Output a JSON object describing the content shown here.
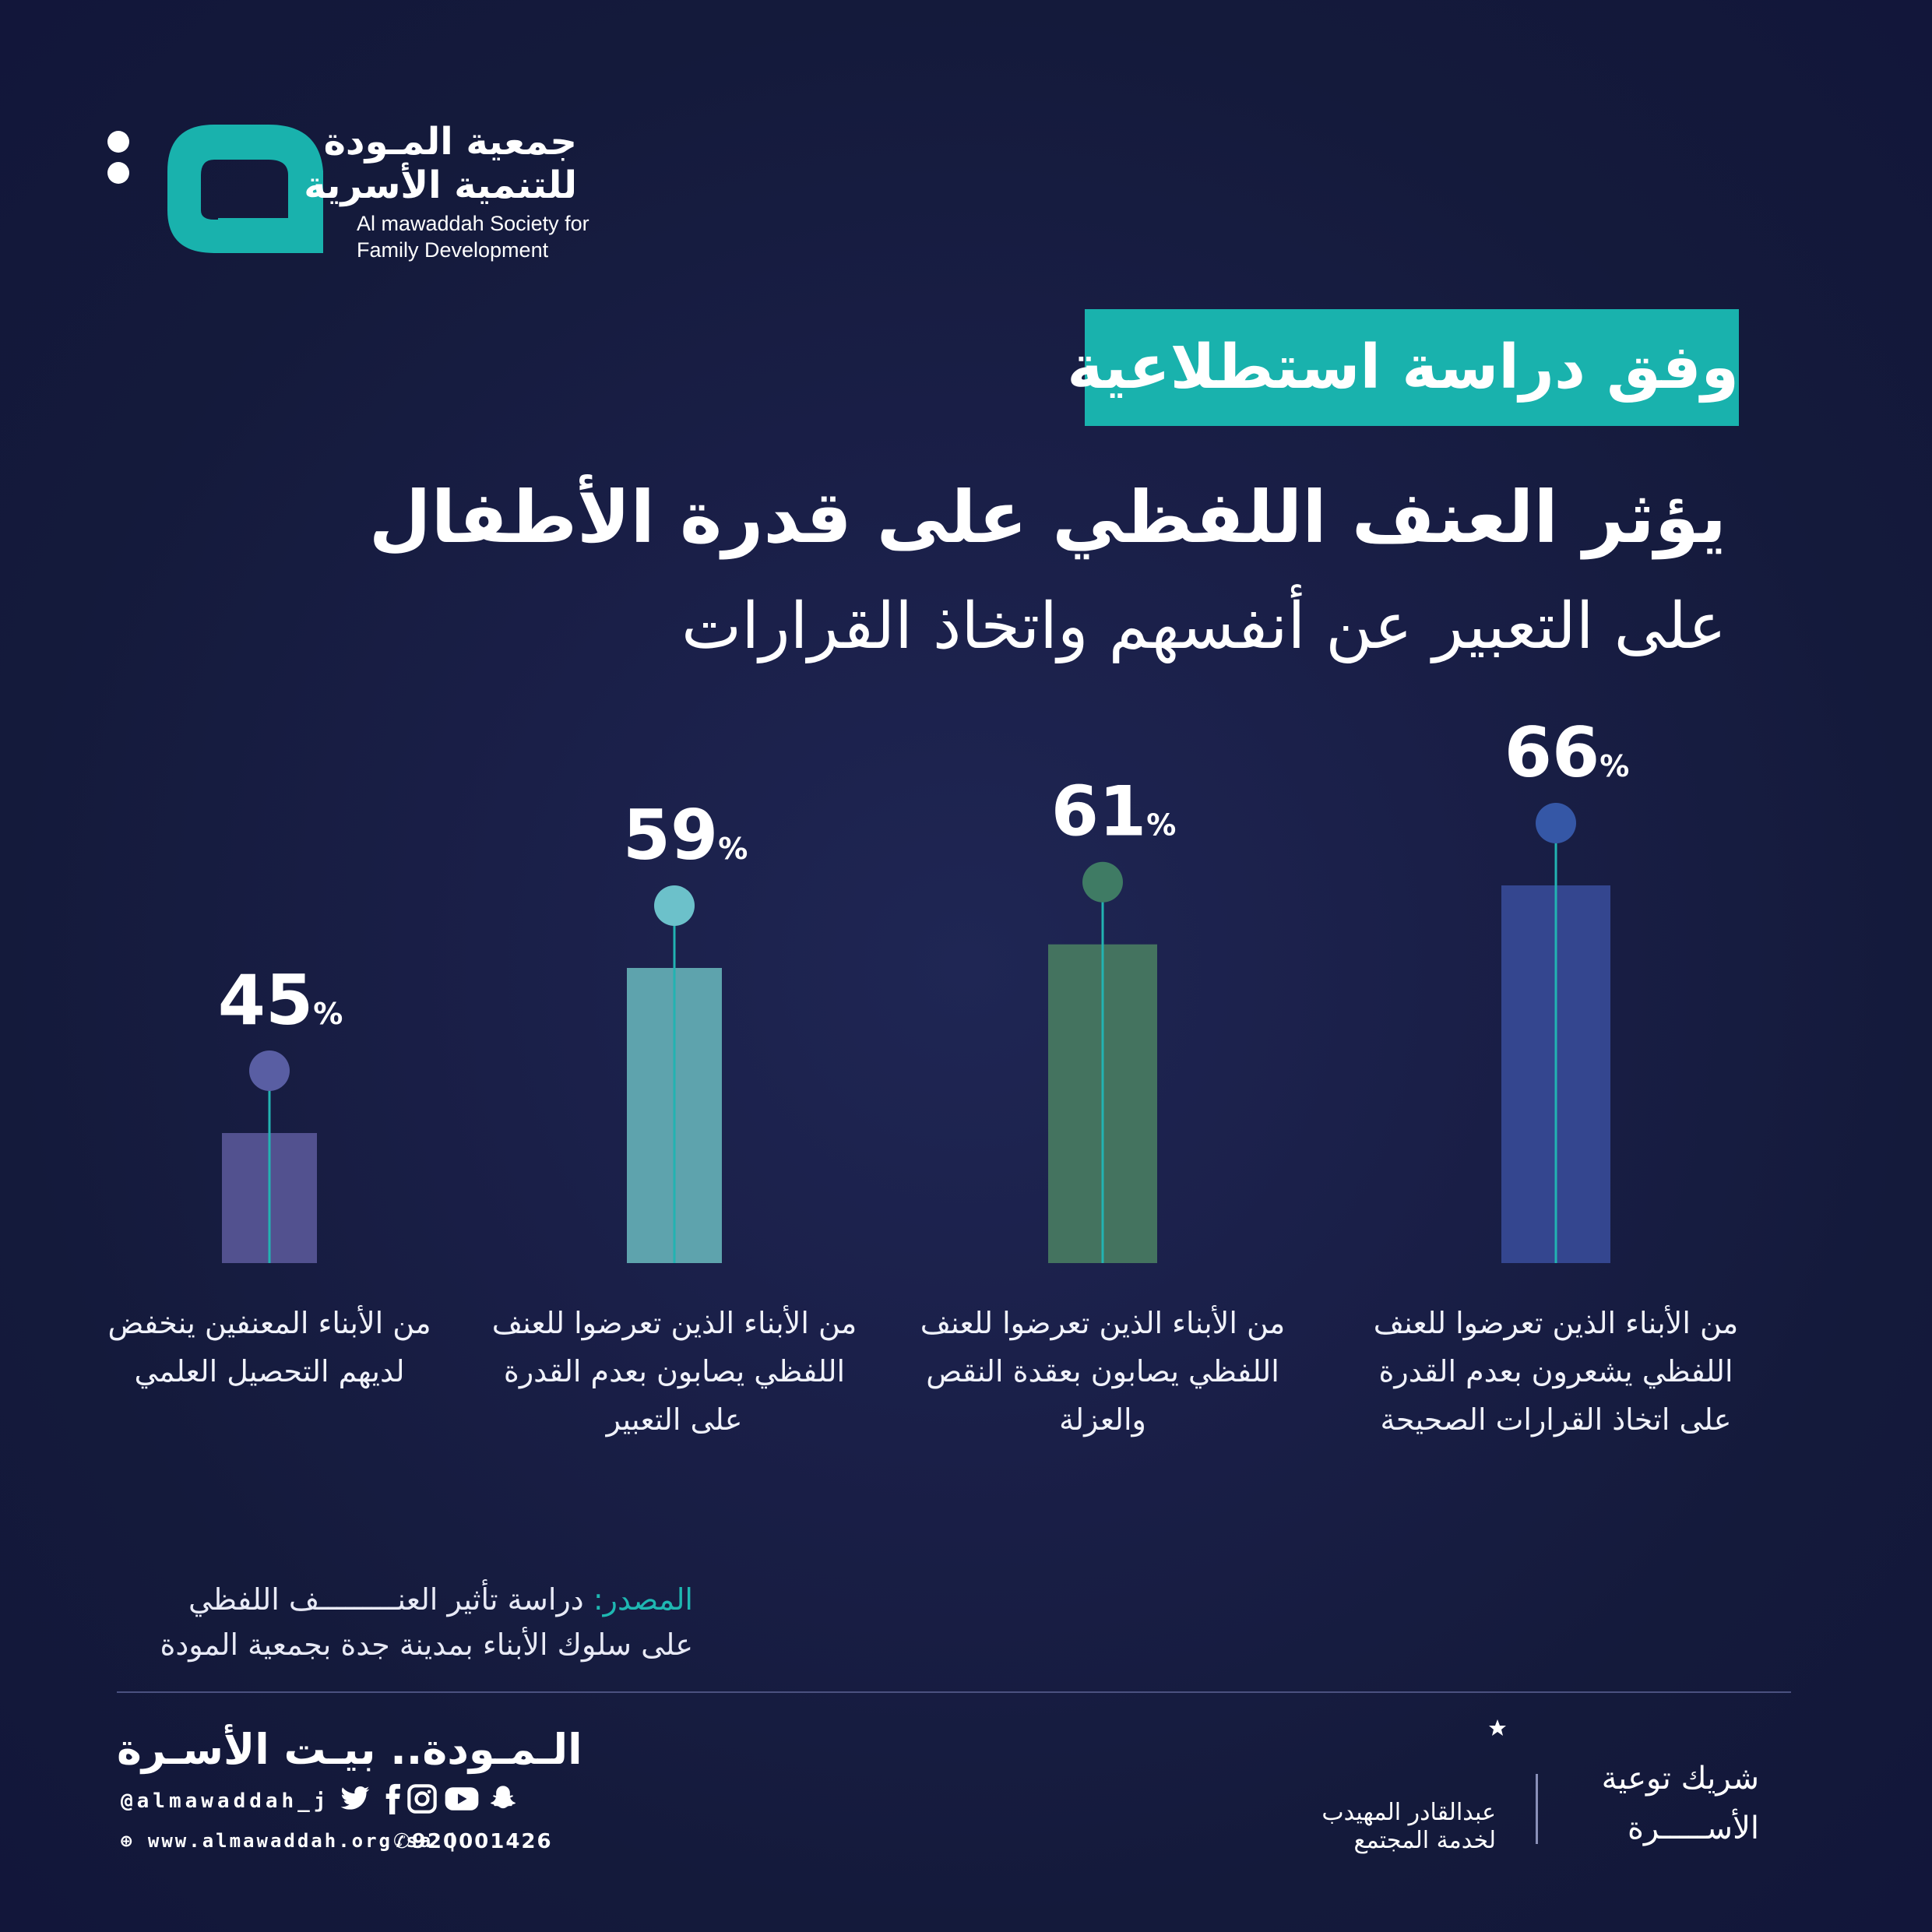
{
  "organization": {
    "name_ar_line1": "جمعية المـودة",
    "name_ar_line2": "للتنمية الأسرية",
    "name_en_line1": "Al mawaddah Society for",
    "name_en_line2": "Family Development"
  },
  "survey_tag": "وفق دراسة استطلاعية",
  "title": {
    "main": "يؤثر العنف اللفظي على قدرة الأطفال",
    "sub": "على التعبير عن أنفسهم واتخاذ القرارات"
  },
  "chart_data": {
    "type": "bar",
    "categories": [
      "من الأبناء الذين تعرضوا للعنف اللفظي يشعرون بعدم القدرة على اتخاذ القرارات الصحيحة",
      "من الأبناء الذين تعرضوا للعنف اللفظي يصابون بعقدة النقص والعزلة",
      "من الأبناء الذين تعرضوا للعنف اللفظي يصابون بعدم القدرة على التعبير",
      "من الأبناء المعنفين ينخفض لديهم التحصيل العلمي"
    ],
    "values": [
      66,
      61,
      59,
      45
    ],
    "value_labels": [
      "66",
      "61",
      "59",
      "45"
    ],
    "unit": "%",
    "bar_colors": [
      "#34468f",
      "#44735f",
      "#5ea3ad",
      "#52518f"
    ],
    "dot_colors": [
      "#3557a6",
      "#3f7b64",
      "#6cc1ca",
      "#595ea3"
    ],
    "stem_color": "#22b3b2",
    "ylim": [
      0,
      100
    ]
  },
  "source": {
    "label": "المصدر:",
    "line1": "دراسة تأثير العنـــــــــف اللفظي",
    "line2": "على سلوك الأبناء بمدينة جدة بجمعية المودة"
  },
  "footer": {
    "slogan": "الـمـودة.. بيـت الأسـرة",
    "handle": "@almawaddah_j",
    "social_icons": [
      "twitter-icon",
      "facebook-icon",
      "instagram-icon",
      "youtube-icon",
      "snapchat-icon"
    ],
    "website": "www.almawaddah.org.sa",
    "phone": "920001426",
    "partner_label_line1": "شريك توعية",
    "partner_label_line2": "الأســـــرة",
    "partner_name_line1": "عبدالقادر المهيدب",
    "partner_name_line2": "لخدمة المجتمع"
  },
  "colors": {
    "background": "#161b40",
    "accent": "#19b2ad"
  }
}
